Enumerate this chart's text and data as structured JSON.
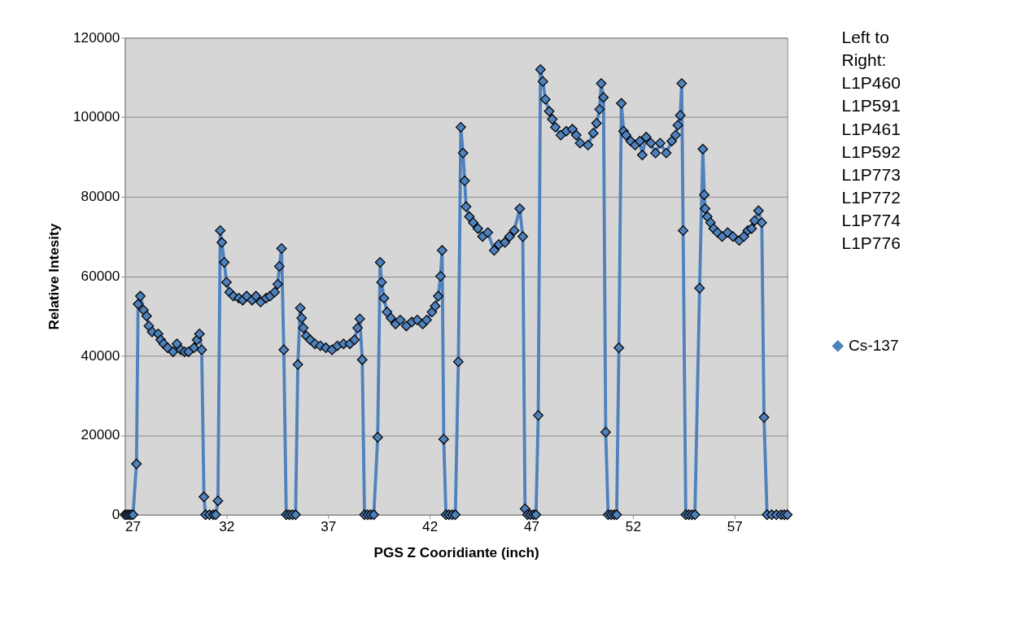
{
  "chart_data": {
    "type": "line",
    "xlabel": "PGS Z Cooridiante (inch)",
    "ylabel": "Relative Intesity",
    "annotations": [
      "Left to\nRight:\nL1P460\nL1P591\nL1P461\nL1P592\nL1P773\nL1P772\nL1P774\nL1P776"
    ],
    "xlim": [
      27,
      59.6
    ],
    "xticks": [
      27,
      32,
      37,
      42,
      47,
      52,
      57
    ],
    "ylim": [
      0,
      120000
    ],
    "yticks": [
      0,
      20000,
      40000,
      60000,
      80000,
      100000,
      120000
    ],
    "grid": "y",
    "legend": "right",
    "marker": "diamond",
    "line_style": "solid",
    "series": [
      {
        "name": "Cs-137",
        "color": "#4f81bd",
        "x": [
          27.0,
          27.1,
          27.2,
          27.3,
          27.4,
          27.57,
          27.65,
          27.76,
          27.92,
          28.07,
          28.18,
          28.34,
          28.64,
          28.76,
          28.91,
          29.1,
          29.37,
          29.56,
          29.75,
          29.94,
          30.13,
          30.4,
          30.55,
          30.67,
          30.78,
          30.89,
          30.97,
          31.16,
          31.35,
          31.47,
          31.58,
          31.69,
          31.77,
          31.89,
          32.0,
          32.15,
          32.34,
          32.61,
          32.8,
          32.99,
          33.26,
          33.45,
          33.68,
          33.95,
          34.14,
          34.37,
          34.52,
          34.6,
          34.71,
          34.82,
          34.94,
          35.09,
          35.24,
          35.4,
          35.51,
          35.63,
          35.7,
          35.78,
          35.93,
          36.12,
          36.35,
          36.62,
          36.89,
          37.19,
          37.46,
          37.76,
          38.07,
          38.3,
          38.45,
          38.56,
          38.68,
          38.79,
          38.95,
          39.1,
          39.25,
          39.44,
          39.56,
          39.63,
          39.75,
          39.9,
          40.09,
          40.32,
          40.55,
          40.85,
          41.12,
          41.39,
          41.66,
          41.85,
          42.11,
          42.27,
          42.42,
          42.53,
          42.61,
          42.69,
          42.8,
          42.95,
          43.11,
          43.26,
          43.41,
          43.53,
          43.64,
          43.72,
          43.79,
          43.95,
          44.14,
          44.37,
          44.6,
          44.86,
          45.17,
          45.4,
          45.7,
          45.93,
          46.16,
          46.43,
          46.58,
          46.69,
          46.81,
          46.96,
          47.11,
          47.23,
          47.34,
          47.45,
          47.57,
          47.69,
          47.88,
          48.03,
          48.18,
          48.45,
          48.72,
          49.02,
          49.21,
          49.4,
          49.79,
          50.05,
          50.21,
          50.36,
          50.44,
          50.55,
          50.66,
          50.78,
          50.93,
          51.08,
          51.2,
          51.31,
          51.43,
          51.54,
          51.66,
          51.89,
          52.11,
          52.34,
          52.46,
          52.65,
          52.88,
          53.11,
          53.34,
          53.64,
          53.91,
          54.1,
          54.21,
          54.33,
          54.4,
          54.47,
          54.6,
          54.75,
          54.9,
          55.05,
          55.28,
          55.44,
          55.51,
          55.55,
          55.66,
          55.82,
          55.97,
          56.16,
          56.39,
          56.66,
          56.92,
          57.23,
          57.46,
          57.65,
          57.84,
          57.99,
          58.18,
          58.34,
          58.45,
          58.6,
          58.83,
          59.06,
          59.29,
          59.45,
          59.6
        ],
        "values": [
          0,
          0,
          0,
          0,
          0,
          12800,
          53000,
          55000,
          51500,
          50000,
          47500,
          46000,
          45500,
          44000,
          43000,
          42000,
          41000,
          43000,
          41500,
          41000,
          41000,
          42000,
          44000,
          45500,
          41500,
          4500,
          0,
          0,
          0,
          0,
          3500,
          71500,
          68500,
          63500,
          58500,
          56000,
          55000,
          54500,
          54000,
          55000,
          54000,
          55000,
          53500,
          54500,
          55000,
          56000,
          58000,
          62500,
          67000,
          41500,
          0,
          0,
          0,
          0,
          37800,
          52000,
          49500,
          47000,
          45000,
          44000,
          43000,
          42500,
          42000,
          41500,
          42500,
          43000,
          43000,
          44000,
          47000,
          49300,
          39000,
          0,
          0,
          0,
          0,
          19500,
          63500,
          58500,
          54500,
          51000,
          49500,
          48000,
          49000,
          47500,
          48500,
          49000,
          48000,
          49000,
          51000,
          52500,
          55000,
          60000,
          66500,
          19000,
          0,
          0,
          0,
          0,
          38500,
          97500,
          91000,
          84000,
          77500,
          75000,
          73500,
          72000,
          70000,
          71000,
          66500,
          68000,
          68500,
          70000,
          71500,
          77000,
          70000,
          1500,
          0,
          0,
          0,
          0,
          25000,
          112000,
          109000,
          104500,
          101500,
          99500,
          97500,
          95500,
          96500,
          97000,
          95500,
          93500,
          93000,
          96000,
          98500,
          102000,
          108500,
          105000,
          20800,
          0,
          0,
          0,
          0,
          42000,
          103500,
          96500,
          95500,
          94000,
          93000,
          94000,
          90500,
          95000,
          93500,
          91000,
          93500,
          91000,
          94000,
          95500,
          98000,
          100500,
          108500,
          71500,
          0,
          0,
          0,
          0,
          57000,
          92000,
          80500,
          77000,
          75000,
          73500,
          72000,
          71000,
          70000,
          71000,
          70000,
          69000,
          70000,
          71500,
          72000,
          74000,
          76500,
          73500,
          24500,
          0,
          0,
          0,
          0,
          0,
          0
        ]
      }
    ]
  }
}
